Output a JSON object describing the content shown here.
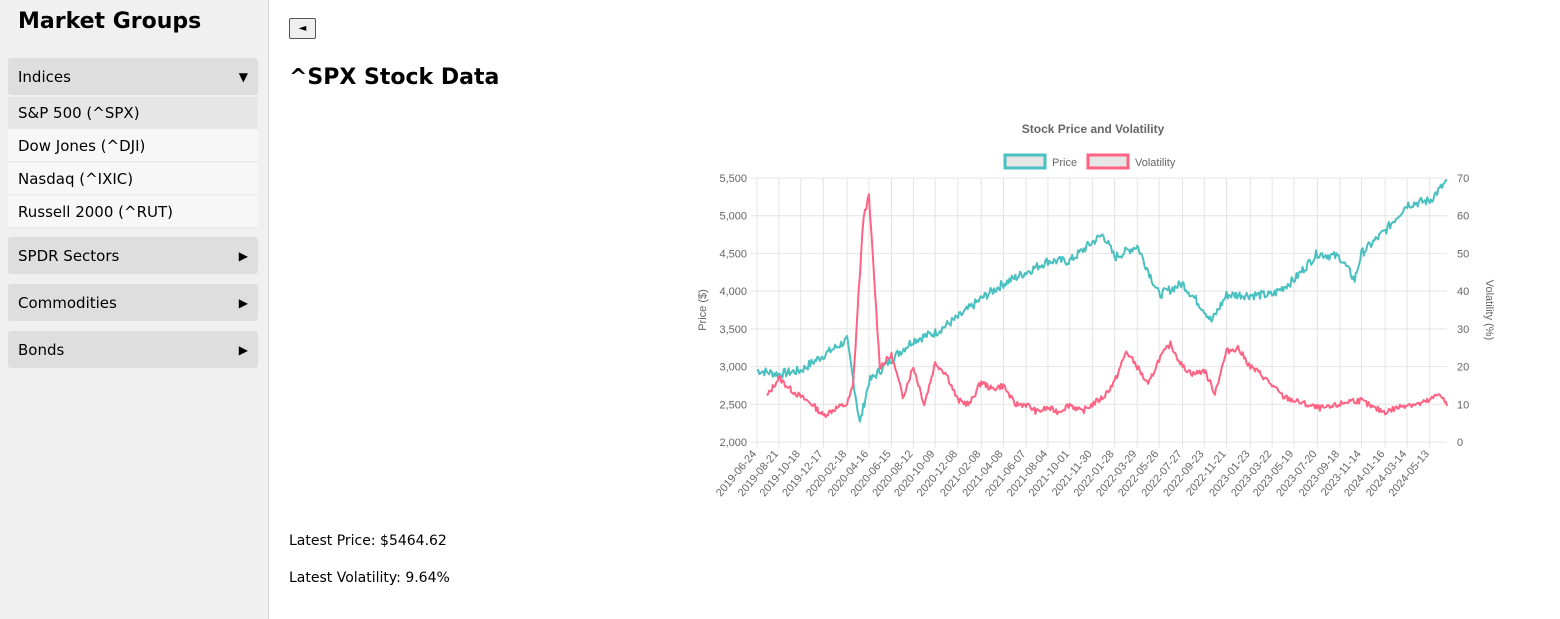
{
  "sidebar": {
    "title": "Market Groups",
    "groups": [
      {
        "label": "Indices",
        "arrow": "▼",
        "items": [
          "S&P 500 (^SPX)",
          "Dow Jones (^DJI)",
          "Nasdaq (^IXIC)",
          "Russell 2000 (^RUT)"
        ]
      },
      {
        "label": "SPDR Sectors",
        "arrow": "▶"
      },
      {
        "label": "Commodities",
        "arrow": "▶"
      },
      {
        "label": "Bonds",
        "arrow": "▶"
      }
    ]
  },
  "main": {
    "back_button": "◄",
    "title": "^SPX Stock Data",
    "latest_price": "Latest Price: $5464.62",
    "latest_volatility": "Latest Volatility: 9.64%"
  },
  "chart_data": {
    "type": "line",
    "title": "Stock Price and Volatility",
    "legend": [
      {
        "name": "Price",
        "color": "#4bc0c0"
      },
      {
        "name": "Volatility",
        "color": "#ff6384"
      }
    ],
    "legend_position": "top",
    "grid": true,
    "ylabel": "Price ($)",
    "y2label": "Volatility (%)",
    "ylim": [
      2000,
      5500
    ],
    "y2lim": [
      0,
      70
    ],
    "yticks": [
      "5,500",
      "5,000",
      "4,500",
      "4,000",
      "3,500",
      "3,000",
      "2,500",
      "2,000"
    ],
    "y2ticks": [
      "70",
      "60",
      "50",
      "40",
      "30",
      "20",
      "10",
      "0"
    ],
    "xticks": [
      "2019-06-24",
      "2019-08-21",
      "2019-10-18",
      "2019-12-17",
      "2020-02-18",
      "2020-04-16",
      "2020-06-15",
      "2020-08-12",
      "2020-10-09",
      "2020-12-08",
      "2021-02-08",
      "2021-04-08",
      "2021-06-07",
      "2021-08-04",
      "2021-10-01",
      "2021-11-30",
      "2022-01-28",
      "2022-03-29",
      "2022-05-26",
      "2022-07-27",
      "2022-09-23",
      "2022-11-21",
      "2023-01-23",
      "2023-03-22",
      "2023-05-19",
      "2023-07-20",
      "2023-09-18",
      "2023-11-14",
      "2024-01-16",
      "2024-03-14",
      "2024-05-13"
    ],
    "series": [
      {
        "name": "Price",
        "x": [
          "2019-06-24",
          "2019-08-21",
          "2019-10-18",
          "2019-12-17",
          "2020-02-18",
          "2020-03-23",
          "2020-04-16",
          "2020-06-15",
          "2020-08-12",
          "2020-10-09",
          "2020-12-08",
          "2021-02-08",
          "2021-04-08",
          "2021-06-07",
          "2021-08-04",
          "2021-10-01",
          "2021-11-30",
          "2021-12-29",
          "2022-01-28",
          "2022-03-29",
          "2022-05-26",
          "2022-07-27",
          "2022-09-23",
          "2022-10-12",
          "2022-11-21",
          "2023-01-23",
          "2023-03-22",
          "2023-05-19",
          "2023-07-20",
          "2023-09-18",
          "2023-10-27",
          "2023-11-14",
          "2024-01-16",
          "2024-03-14",
          "2024-05-13",
          "2024-06-28"
        ],
        "values": [
          2950,
          2900,
          2950,
          3150,
          3350,
          2250,
          2800,
          3100,
          3350,
          3450,
          3650,
          3900,
          4100,
          4250,
          4400,
          4400,
          4650,
          4750,
          4450,
          4600,
          3950,
          4100,
          3750,
          3600,
          3950,
          3950,
          3950,
          4150,
          4500,
          4450,
          4150,
          4500,
          4800,
          5150,
          5200,
          5460
        ]
      },
      {
        "name": "Volatility",
        "x": [
          "2019-07-20",
          "2019-08-21",
          "2019-09-20",
          "2019-10-18",
          "2019-11-18",
          "2019-12-17",
          "2020-01-20",
          "2020-02-18",
          "2020-03-05",
          "2020-03-20",
          "2020-04-02",
          "2020-04-16",
          "2020-05-15",
          "2020-06-15",
          "2020-07-15",
          "2020-08-12",
          "2020-09-10",
          "2020-10-09",
          "2020-11-08",
          "2020-12-08",
          "2021-01-08",
          "2021-02-08",
          "2021-03-08",
          "2021-04-08",
          "2021-05-08",
          "2021-06-07",
          "2021-07-05",
          "2021-08-04",
          "2021-09-01",
          "2021-10-01",
          "2021-11-01",
          "2021-11-30",
          "2021-12-30",
          "2022-01-28",
          "2022-02-28",
          "2022-03-29",
          "2022-04-27",
          "2022-05-26",
          "2022-06-25",
          "2022-07-27",
          "2022-08-25",
          "2022-09-23",
          "2022-10-21",
          "2022-11-21",
          "2022-12-21",
          "2023-01-23",
          "2023-02-20",
          "2023-03-22",
          "2023-04-20",
          "2023-05-19",
          "2023-06-19",
          "2023-07-20",
          "2023-08-19",
          "2023-09-18",
          "2023-10-16",
          "2023-11-14",
          "2023-12-15",
          "2024-01-16",
          "2024-02-15",
          "2024-03-14",
          "2024-04-14",
          "2024-05-13",
          "2024-06-10",
          "2024-06-28"
        ],
        "values": [
          12,
          17,
          14,
          12,
          10,
          7,
          9,
          10,
          15,
          40,
          60,
          65,
          20,
          23,
          12,
          20,
          10,
          21,
          18,
          11,
          10,
          16,
          14,
          15,
          10,
          10,
          8,
          9,
          8,
          10,
          8,
          10,
          12,
          16,
          24,
          20,
          15,
          22,
          26,
          20,
          18,
          19,
          13,
          24,
          25,
          20,
          18,
          15,
          12,
          11,
          10,
          9,
          9,
          10,
          11,
          11,
          9,
          8,
          9,
          10,
          10,
          11,
          13,
          9.6
        ]
      }
    ]
  }
}
